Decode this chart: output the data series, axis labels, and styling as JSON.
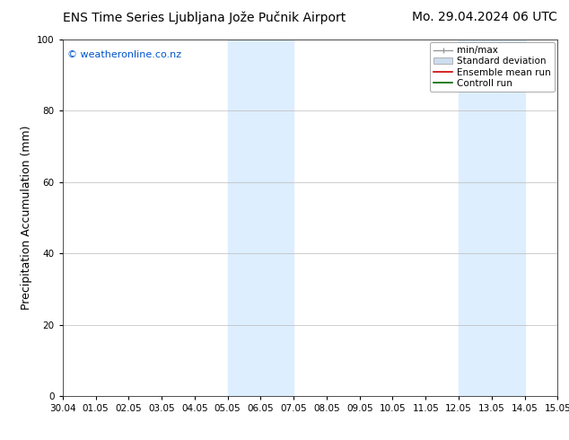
{
  "title_left": "ENS Time Series Ljubljana Jože Pučnik Airport",
  "title_right": "Mo. 29.04.2024 06 UTC",
  "ylabel": "Precipitation Accumulation (mm)",
  "watermark": "© weatheronline.co.nz",
  "watermark_color": "#0055cc",
  "ylim": [
    0,
    100
  ],
  "yticks": [
    0,
    20,
    40,
    60,
    80,
    100
  ],
  "x_start_label": "30.04",
  "x_end_label": "15.05",
  "xtick_labels": [
    "30.04",
    "01.05",
    "02.05",
    "03.05",
    "04.05",
    "05.05",
    "06.05",
    "07.05",
    "08.05",
    "09.05",
    "10.05",
    "11.05",
    "12.05",
    "13.05",
    "14.05",
    "15.05"
  ],
  "shaded_regions": [
    {
      "start_day": 5,
      "end_day": 7,
      "color": "#ddeeff"
    },
    {
      "start_day": 12,
      "end_day": 14,
      "color": "#ddeeff"
    }
  ],
  "background_color": "#ffffff",
  "plot_bg_color": "#ffffff",
  "grid_color": "#bbbbbb",
  "font_size_title": 10,
  "font_size_axis": 9,
  "font_size_ticks": 7.5,
  "font_size_legend": 7.5,
  "font_size_watermark": 8
}
